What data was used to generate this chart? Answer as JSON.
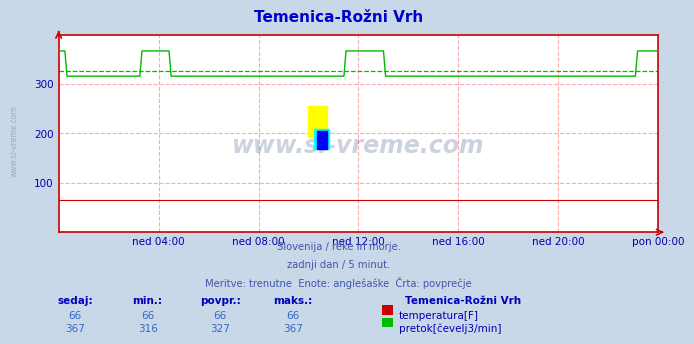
{
  "title": "Temenica-Rožni Vrh",
  "title_color": "#0000cc",
  "bg_color": "#c8d8e8",
  "plot_bg_color": "#ffffff",
  "grid_color": "#ffaaaa",
  "axis_color": "#cc0000",
  "tick_color": "#0000aa",
  "watermark_text": "www.si-vreme.com",
  "watermark_color": "#1a3a6a",
  "sidebar_text": "www.si-vreme.com",
  "sidebar_color": "#8899bb",
  "ylim": [
    0,
    400
  ],
  "yticks": [
    100,
    200,
    300
  ],
  "xlim": [
    0,
    288
  ],
  "xtick_positions": [
    48,
    96,
    144,
    192,
    240,
    288
  ],
  "xtick_labels": [
    "ned 04:00",
    "ned 08:00",
    "ned 12:00",
    "ned 16:00",
    "ned 20:00",
    "pon 00:00"
  ],
  "temp_value": 66,
  "temp_color": "#cc0000",
  "flow_color": "#00bb00",
  "flow_avg": 327,
  "flow_high": 367,
  "flow_low": 316,
  "subtitle_lines": [
    "Slovenija / reke in morje.",
    "zadnji dan / 5 minut.",
    "Meritve: trenutne  Enote: anglešaške  Črta: povprečje"
  ],
  "subtitle_color": "#4455aa",
  "table_header_color": "#0000bb",
  "table_value_color": "#3366cc",
  "station_label": "Temenica-Rožni Vrh",
  "row1_label": "temperatura[F]",
  "row2_label": "pretok[čevelj3/min]",
  "row1_values": [
    "66",
    "66",
    "66",
    "66"
  ],
  "row2_values": [
    "367",
    "316",
    "327",
    "367"
  ],
  "col_labels": [
    "sedaj:",
    "min.:",
    "povpr.:",
    "maks.:"
  ],
  "flow_spike_segments": [
    [
      0,
      4
    ],
    [
      40,
      54
    ],
    [
      138,
      157
    ],
    [
      278,
      289
    ]
  ],
  "logo_yellow": "#ffff00",
  "logo_cyan": "#00ffff",
  "logo_blue": "#0000ff"
}
